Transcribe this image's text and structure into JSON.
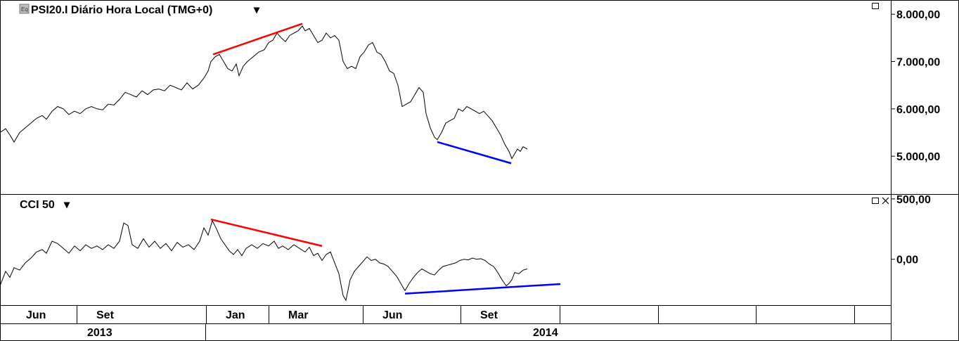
{
  "chart_data": [
    {
      "type": "line",
      "title": "PSI20.I Diário Hora Local (TMG+0)",
      "title_dropdown": "▾",
      "ylim": [
        4200,
        8300
      ],
      "y_ticks": [
        {
          "value": 8000,
          "label": "8.000,00"
        },
        {
          "value": 7000,
          "label": "7.000,00"
        },
        {
          "value": 6000,
          "label": "6.000,00"
        },
        {
          "value": 5000,
          "label": "5.000,00"
        }
      ],
      "series": [
        {
          "color": "#000000",
          "points": [
            [
              0,
              5500
            ],
            [
              8,
              5580
            ],
            [
              14,
              5450
            ],
            [
              20,
              5300
            ],
            [
              28,
              5500
            ],
            [
              36,
              5600
            ],
            [
              44,
              5700
            ],
            [
              52,
              5800
            ],
            [
              60,
              5860
            ],
            [
              66,
              5780
            ],
            [
              74,
              5950
            ],
            [
              82,
              6050
            ],
            [
              90,
              6000
            ],
            [
              98,
              5880
            ],
            [
              106,
              5950
            ],
            [
              114,
              5900
            ],
            [
              122,
              6000
            ],
            [
              130,
              6050
            ],
            [
              138,
              6000
            ],
            [
              146,
              5980
            ],
            [
              154,
              6100
            ],
            [
              162,
              6080
            ],
            [
              170,
              6200
            ],
            [
              178,
              6350
            ],
            [
              186,
              6300
            ],
            [
              194,
              6250
            ],
            [
              202,
              6380
            ],
            [
              210,
              6300
            ],
            [
              218,
              6400
            ],
            [
              226,
              6420
            ],
            [
              234,
              6380
            ],
            [
              242,
              6500
            ],
            [
              250,
              6450
            ],
            [
              258,
              6400
            ],
            [
              266,
              6550
            ],
            [
              274,
              6420
            ],
            [
              282,
              6500
            ],
            [
              290,
              6650
            ],
            [
              296,
              6800
            ],
            [
              300,
              7000
            ],
            [
              306,
              7100
            ],
            [
              312,
              7150
            ],
            [
              318,
              7000
            ],
            [
              324,
              6850
            ],
            [
              330,
              6800
            ],
            [
              336,
              6950
            ],
            [
              340,
              6700
            ],
            [
              346,
              6900
            ],
            [
              352,
              7000
            ],
            [
              360,
              7100
            ],
            [
              368,
              7200
            ],
            [
              376,
              7250
            ],
            [
              382,
              7400
            ],
            [
              388,
              7450
            ],
            [
              394,
              7600
            ],
            [
              400,
              7500
            ],
            [
              406,
              7420
            ],
            [
              412,
              7550
            ],
            [
              418,
              7600
            ],
            [
              424,
              7650
            ],
            [
              430,
              7750
            ],
            [
              434,
              7650
            ],
            [
              440,
              7700
            ],
            [
              446,
              7550
            ],
            [
              452,
              7400
            ],
            [
              458,
              7450
            ],
            [
              464,
              7600
            ],
            [
              470,
              7500
            ],
            [
              476,
              7550
            ],
            [
              482,
              7450
            ],
            [
              488,
              7000
            ],
            [
              494,
              6850
            ],
            [
              500,
              6900
            ],
            [
              506,
              6850
            ],
            [
              512,
              7100
            ],
            [
              518,
              7200
            ],
            [
              524,
              7350
            ],
            [
              530,
              7400
            ],
            [
              536,
              7200
            ],
            [
              542,
              7150
            ],
            [
              548,
              7000
            ],
            [
              554,
              6800
            ],
            [
              560,
              6750
            ],
            [
              566,
              6500
            ],
            [
              572,
              6050
            ],
            [
              578,
              6100
            ],
            [
              584,
              6150
            ],
            [
              590,
              6300
            ],
            [
              596,
              6450
            ],
            [
              602,
              6350
            ],
            [
              606,
              5900
            ],
            [
              612,
              5600
            ],
            [
              618,
              5400
            ],
            [
              622,
              5350
            ],
            [
              628,
              5500
            ],
            [
              634,
              5700
            ],
            [
              640,
              5750
            ],
            [
              646,
              5800
            ],
            [
              652,
              6000
            ],
            [
              658,
              5950
            ],
            [
              664,
              6050
            ],
            [
              670,
              6000
            ],
            [
              676,
              5950
            ],
            [
              682,
              5900
            ],
            [
              688,
              5950
            ],
            [
              694,
              5850
            ],
            [
              700,
              5750
            ],
            [
              706,
              5600
            ],
            [
              712,
              5450
            ],
            [
              718,
              5250
            ],
            [
              724,
              5100
            ],
            [
              728,
              4950
            ],
            [
              732,
              5050
            ],
            [
              736,
              5150
            ],
            [
              740,
              5100
            ],
            [
              744,
              5200
            ],
            [
              750,
              5150
            ]
          ]
        }
      ],
      "annotations": [
        {
          "color": "#ff0000",
          "from": [
            303,
            7150
          ],
          "to": [
            430,
            7800
          ]
        },
        {
          "color": "#0000ff",
          "from": [
            622,
            5300
          ],
          "to": [
            727,
            4850
          ]
        }
      ]
    },
    {
      "type": "line",
      "title": "CCI 50",
      "title_dropdown": "▾",
      "ylim": [
        -380,
        540
      ],
      "y_ticks": [
        {
          "value": 500,
          "label": "500,00"
        },
        {
          "value": 0,
          "label": "0,00"
        }
      ],
      "series": [
        {
          "color": "#000000",
          "points": [
            [
              0,
              -220
            ],
            [
              8,
              -100
            ],
            [
              14,
              -150
            ],
            [
              20,
              -70
            ],
            [
              28,
              -90
            ],
            [
              36,
              -30
            ],
            [
              44,
              10
            ],
            [
              52,
              60
            ],
            [
              60,
              80
            ],
            [
              66,
              50
            ],
            [
              74,
              150
            ],
            [
              82,
              130
            ],
            [
              90,
              90
            ],
            [
              98,
              50
            ],
            [
              106,
              110
            ],
            [
              114,
              70
            ],
            [
              122,
              120
            ],
            [
              130,
              90
            ],
            [
              138,
              110
            ],
            [
              146,
              80
            ],
            [
              154,
              120
            ],
            [
              162,
              90
            ],
            [
              170,
              150
            ],
            [
              176,
              300
            ],
            [
              182,
              280
            ],
            [
              188,
              120
            ],
            [
              196,
              90
            ],
            [
              204,
              170
            ],
            [
              212,
              100
            ],
            [
              220,
              150
            ],
            [
              228,
              90
            ],
            [
              236,
              130
            ],
            [
              244,
              70
            ],
            [
              252,
              140
            ],
            [
              260,
              100
            ],
            [
              268,
              120
            ],
            [
              276,
              80
            ],
            [
              284,
              150
            ],
            [
              290,
              260
            ],
            [
              296,
              200
            ],
            [
              302,
              320
            ],
            [
              308,
              250
            ],
            [
              314,
              170
            ],
            [
              320,
              120
            ],
            [
              326,
              70
            ],
            [
              332,
              40
            ],
            [
              338,
              80
            ],
            [
              344,
              30
            ],
            [
              350,
              90
            ],
            [
              358,
              120
            ],
            [
              366,
              90
            ],
            [
              374,
              130
            ],
            [
              382,
              110
            ],
            [
              390,
              150
            ],
            [
              396,
              90
            ],
            [
              402,
              110
            ],
            [
              410,
              80
            ],
            [
              418,
              120
            ],
            [
              426,
              90
            ],
            [
              434,
              60
            ],
            [
              440,
              100
            ],
            [
              446,
              30
            ],
            [
              452,
              50
            ],
            [
              458,
              -10
            ],
            [
              464,
              40
            ],
            [
              470,
              60
            ],
            [
              476,
              -30
            ],
            [
              482,
              -120
            ],
            [
              488,
              -300
            ],
            [
              492,
              -340
            ],
            [
              498,
              -170
            ],
            [
              504,
              -100
            ],
            [
              510,
              -60
            ],
            [
              516,
              -20
            ],
            [
              522,
              20
            ],
            [
              528,
              -10
            ],
            [
              534,
              0
            ],
            [
              540,
              -30
            ],
            [
              546,
              -40
            ],
            [
              552,
              -60
            ],
            [
              558,
              -100
            ],
            [
              564,
              -140
            ],
            [
              570,
              -200
            ],
            [
              576,
              -260
            ],
            [
              582,
              -200
            ],
            [
              588,
              -150
            ],
            [
              594,
              -110
            ],
            [
              600,
              -80
            ],
            [
              606,
              -100
            ],
            [
              612,
              -120
            ],
            [
              618,
              -130
            ],
            [
              624,
              -90
            ],
            [
              630,
              -60
            ],
            [
              636,
              -50
            ],
            [
              642,
              -40
            ],
            [
              648,
              -30
            ],
            [
              654,
              -10
            ],
            [
              660,
              0
            ],
            [
              666,
              -5
            ],
            [
              672,
              10
            ],
            [
              678,
              0
            ],
            [
              684,
              5
            ],
            [
              690,
              -10
            ],
            [
              696,
              -40
            ],
            [
              702,
              -60
            ],
            [
              708,
              -110
            ],
            [
              714,
              -170
            ],
            [
              720,
              -220
            ],
            [
              724,
              -200
            ],
            [
              728,
              -170
            ],
            [
              732,
              -110
            ],
            [
              738,
              -120
            ],
            [
              744,
              -90
            ],
            [
              750,
              -80
            ]
          ]
        }
      ],
      "annotations": [
        {
          "color": "#ff0000",
          "from": [
            300,
            330
          ],
          "to": [
            458,
            110
          ]
        },
        {
          "color": "#0000ff",
          "from": [
            576,
            -285
          ],
          "to": [
            797,
            -205
          ]
        }
      ]
    }
  ],
  "x_axis": {
    "months": [
      "Jun",
      "Set",
      "Jan",
      "Mar",
      "Jun",
      "Set"
    ],
    "years": [
      "2013",
      "2014"
    ]
  },
  "colors": {
    "up_trend": "#ff0000",
    "down_trend": "#0000ff",
    "series": "#000000"
  }
}
